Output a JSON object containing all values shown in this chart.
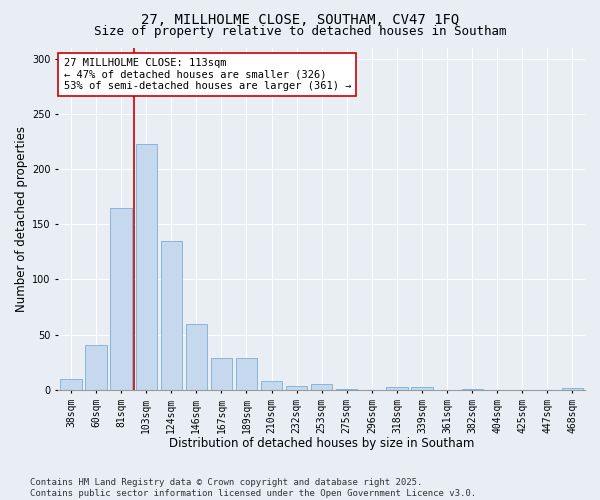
{
  "title": "27, MILLHOLME CLOSE, SOUTHAM, CV47 1FQ",
  "subtitle": "Size of property relative to detached houses in Southam",
  "xlabel": "Distribution of detached houses by size in Southam",
  "ylabel": "Number of detached properties",
  "categories": [
    "38sqm",
    "60sqm",
    "81sqm",
    "103sqm",
    "124sqm",
    "146sqm",
    "167sqm",
    "189sqm",
    "210sqm",
    "232sqm",
    "253sqm",
    "275sqm",
    "296sqm",
    "318sqm",
    "339sqm",
    "361sqm",
    "382sqm",
    "404sqm",
    "425sqm",
    "447sqm",
    "468sqm"
  ],
  "values": [
    10,
    41,
    165,
    223,
    135,
    60,
    29,
    29,
    8,
    4,
    5,
    1,
    0,
    3,
    3,
    0,
    1,
    0,
    0,
    0,
    2
  ],
  "bar_color": "#c5d8ed",
  "bar_edge_color": "#7aafd4",
  "vline_color": "#cc0000",
  "vline_x_index": 2.5,
  "annotation_text": "27 MILLHOLME CLOSE: 113sqm\n← 47% of detached houses are smaller (326)\n53% of semi-detached houses are larger (361) →",
  "annotation_box_color": "#ffffff",
  "annotation_box_edge_color": "#cc0000",
  "ylim": [
    0,
    310
  ],
  "yticks": [
    0,
    50,
    100,
    150,
    200,
    250,
    300
  ],
  "footer": "Contains HM Land Registry data © Crown copyright and database right 2025.\nContains public sector information licensed under the Open Government Licence v3.0.",
  "bg_color": "#e8eef4",
  "plot_bg_color": "#e8eef4",
  "title_fontsize": 10,
  "subtitle_fontsize": 9,
  "axis_label_fontsize": 8.5,
  "tick_fontsize": 7,
  "annotation_fontsize": 7.5,
  "footer_fontsize": 6.5,
  "figwidth": 6.0,
  "figheight": 5.0,
  "dpi": 100
}
